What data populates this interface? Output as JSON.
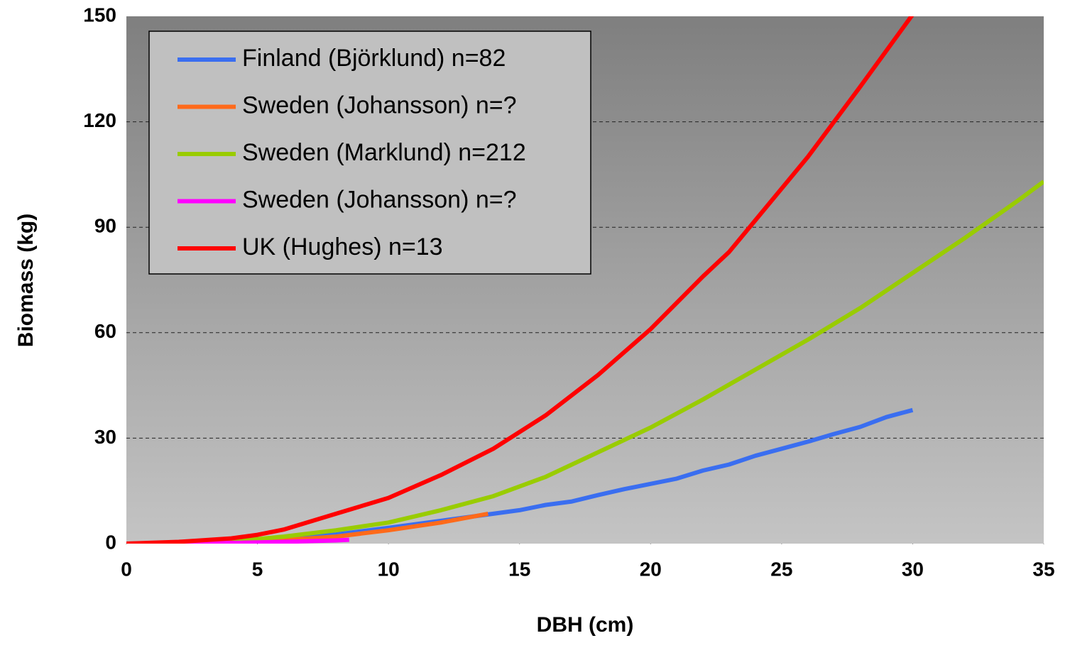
{
  "chart_data": {
    "type": "line",
    "xlabel": "DBH (cm)",
    "ylabel": "Biomass (kg)",
    "xlim": [
      0,
      35
    ],
    "xticks": [
      0,
      5,
      10,
      15,
      20,
      25,
      30,
      35
    ],
    "ylim": [
      0,
      150
    ],
    "yticks": [
      0,
      30,
      60,
      90,
      120,
      150
    ],
    "grid": true,
    "legend": "upper left",
    "series": [
      {
        "name": "Finland (Björklund) n=82",
        "color": "#3a6ef0",
        "x": [
          0,
          2,
          4,
          6,
          8,
          10,
          12,
          14,
          15,
          16,
          17,
          18,
          19,
          20,
          21,
          22,
          23,
          24,
          25,
          26,
          27,
          28,
          29,
          30
        ],
        "values": [
          0,
          0.1,
          0.5,
          1.3,
          2.6,
          4.5,
          6.5,
          8.5,
          9.5,
          11,
          12,
          13.8,
          15.5,
          17,
          18.5,
          20.8,
          22.5,
          25,
          27,
          29,
          31.2,
          33.2,
          36,
          38
        ]
      },
      {
        "name": "Sweden (Johansson) n=?",
        "color": "#ff6a1a",
        "x": [
          0,
          2,
          4,
          6,
          8,
          10,
          12,
          13.8
        ],
        "values": [
          0,
          0.1,
          0.4,
          1,
          2,
          3.8,
          6,
          8.5
        ]
      },
      {
        "name": "Sweden (Marklund) n=212",
        "color": "#99cc00",
        "x": [
          0,
          2,
          4,
          6,
          8,
          10,
          12,
          14,
          16,
          18,
          20,
          22,
          24,
          26,
          28,
          30,
          32,
          34,
          35
        ],
        "values": [
          0,
          0.1,
          0.6,
          2,
          3.8,
          6,
          9.5,
          13.5,
          19,
          26,
          33,
          41,
          49.5,
          58,
          67,
          77,
          87,
          97.5,
          103
        ]
      },
      {
        "name": "Sweden (Johansson) n=?",
        "color": "#ff00ff",
        "x": [
          0,
          2,
          4,
          6,
          8,
          8.5
        ],
        "values": [
          0,
          0.05,
          0.2,
          0.5,
          0.9,
          1.1
        ]
      },
      {
        "name": "UK (Hughes) n=13",
        "color": "#ff0000",
        "x": [
          0,
          2,
          4,
          5,
          6,
          8,
          10,
          12,
          14,
          16,
          18,
          20,
          22,
          23,
          24,
          26,
          28,
          30
        ],
        "values": [
          0,
          0.5,
          1.5,
          2.5,
          4,
          8.5,
          13,
          19.5,
          27,
          36.5,
          48,
          61,
          76,
          83,
          92,
          110,
          130,
          150.5
        ]
      }
    ]
  }
}
